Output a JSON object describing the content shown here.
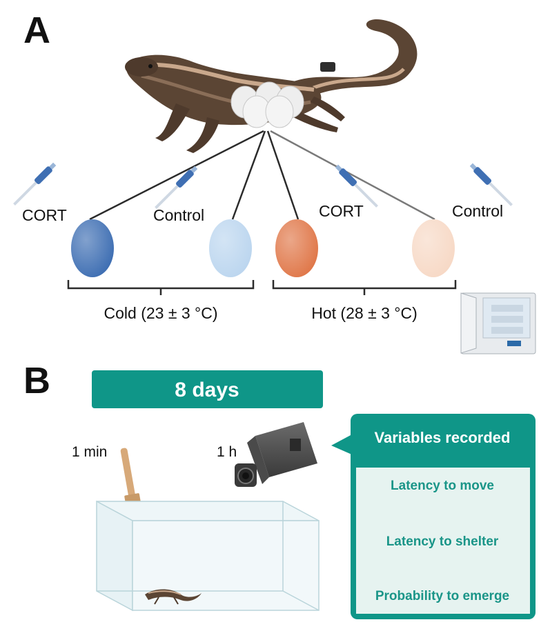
{
  "panel_a": {
    "letter": "A",
    "eggs": [
      {
        "label": "CORT",
        "color": "#3f6fb3"
      },
      {
        "label": "Control",
        "color": "#bcd6ef"
      },
      {
        "label": "CORT",
        "color": "#e0784a"
      },
      {
        "label": "Control",
        "color": "#f7d9c6"
      }
    ],
    "groups": [
      {
        "label": "Cold (23 ± 3 °C)"
      },
      {
        "label": "Hot (28 ± 3 °C)"
      }
    ]
  },
  "panel_b": {
    "letter": "B",
    "banner": "8 days",
    "brush_label": "1 min",
    "camera_label": "1 h",
    "variables_title": "Variables recorded",
    "variables": [
      "Latency to move",
      "Latency to shelter",
      "Probability to emerge"
    ]
  },
  "colors": {
    "teal": "#0f9688",
    "teal_light": "#e6f3f0",
    "lizard_body": "#5b4534",
    "lizard_stripe": "#c9a88c"
  }
}
